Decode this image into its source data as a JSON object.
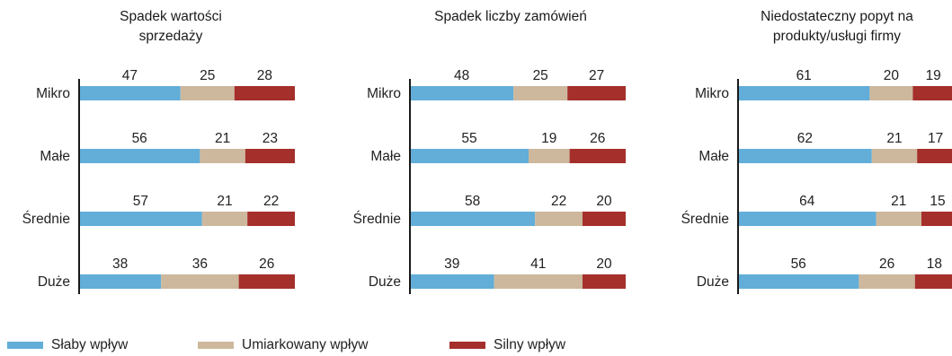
{
  "colors": {
    "weak": "#62aed9",
    "moderate": "#cdb89d",
    "strong": "#a52f2b",
    "axis": "#1a1a1a"
  },
  "legend": [
    {
      "label": "Słaby wpływ",
      "color": "#62aed9"
    },
    {
      "label": "Umiarkowany wpływ",
      "color": "#cdb89d"
    },
    {
      "label": "Silny wpływ",
      "color": "#a52f2b"
    }
  ],
  "chart_data": [
    {
      "type": "bar",
      "orientation": "horizontal",
      "stacked": true,
      "title": "Spadek wartości sprzedaży",
      "categories": [
        "Mikro",
        "Małe",
        "Średnie",
        "Duże"
      ],
      "series": [
        {
          "name": "Słaby wpływ",
          "values": [
            47,
            56,
            57,
            38
          ]
        },
        {
          "name": "Umiarkowany wpływ",
          "values": [
            25,
            21,
            21,
            36
          ]
        },
        {
          "name": "Silny wpływ",
          "values": [
            28,
            23,
            22,
            26
          ]
        }
      ],
      "xlim": [
        0,
        100
      ]
    },
    {
      "type": "bar",
      "orientation": "horizontal",
      "stacked": true,
      "title": "Spadek liczby zamówień",
      "categories": [
        "Mikro",
        "Małe",
        "Średnie",
        "Duże"
      ],
      "series": [
        {
          "name": "Słaby wpływ",
          "values": [
            48,
            55,
            58,
            39
          ]
        },
        {
          "name": "Umiarkowany wpływ",
          "values": [
            25,
            19,
            22,
            41
          ]
        },
        {
          "name": "Silny wpływ",
          "values": [
            27,
            26,
            20,
            20
          ]
        }
      ],
      "xlim": [
        0,
        100
      ]
    },
    {
      "type": "bar",
      "orientation": "horizontal",
      "stacked": true,
      "title": "Niedostateczny popyt na produkty/usługi firmy",
      "categories": [
        "Mikro",
        "Małe",
        "Średnie",
        "Duże"
      ],
      "series": [
        {
          "name": "Słaby wpływ",
          "values": [
            61,
            62,
            64,
            56
          ]
        },
        {
          "name": "Umiarkowany wpływ",
          "values": [
            20,
            21,
            21,
            26
          ]
        },
        {
          "name": "Silny wpływ",
          "values": [
            19,
            17,
            15,
            18
          ]
        }
      ],
      "xlim": [
        0,
        100
      ]
    }
  ]
}
